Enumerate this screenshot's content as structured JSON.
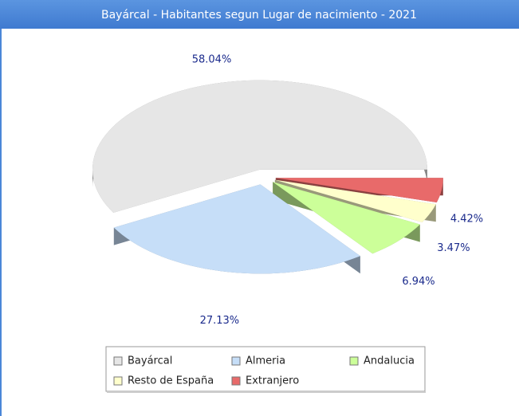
{
  "chart_data": {
    "type": "pie",
    "title": "Bayárcal - Habitantes segun Lugar de nacimiento - 2021",
    "categories": [
      "Bayárcal",
      "Almeria",
      "Andalucia",
      "Resto de España",
      "Extranjero"
    ],
    "values": [
      58.04,
      27.13,
      6.94,
      3.47,
      4.42
    ],
    "value_labels": [
      "58.04%",
      "27.13%",
      "6.94%",
      "3.47%",
      "4.42%"
    ],
    "colors": [
      "#e6e6e6",
      "#c6def8",
      "#ccff99",
      "#ffffcc",
      "#e86a6a"
    ],
    "legend": "bottom"
  }
}
